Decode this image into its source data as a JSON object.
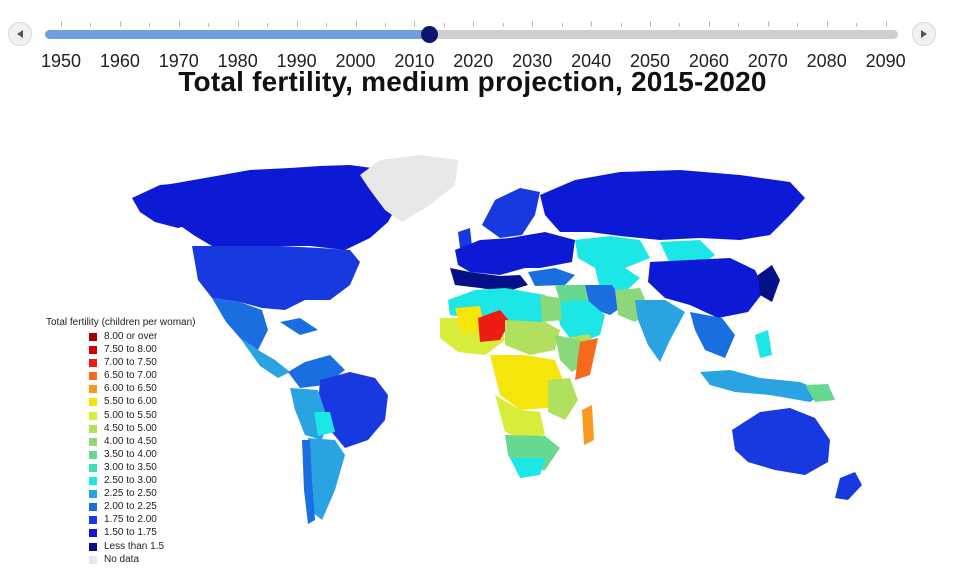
{
  "slider": {
    "years": [
      "1950",
      "1960",
      "1970",
      "1980",
      "1990",
      "2000",
      "2010",
      "2020",
      "2030",
      "2040",
      "2050",
      "2060",
      "2070",
      "2080",
      "2090"
    ],
    "selected_fraction": 0.45,
    "fill_color": "#6f9fe2",
    "thumb_color": "#0c1572"
  },
  "title": "Total fertility, medium projection, 2015-2020",
  "legend": {
    "title": "Total fertility (children per woman)",
    "items": [
      {
        "label": "8.00 or over",
        "color": "#a50000"
      },
      {
        "label": "7.50 to 8.00",
        "color": "#d40000"
      },
      {
        "label": "7.00 to 7.50",
        "color": "#ee1c10"
      },
      {
        "label": "6.50 to 7.00",
        "color": "#f76a1d"
      },
      {
        "label": "6.00 to 6.50",
        "color": "#f99a1f"
      },
      {
        "label": "5.50 to 6.00",
        "color": "#f5e50a"
      },
      {
        "label": "5.00 to 5.50",
        "color": "#d8ec3a"
      },
      {
        "label": "4.50 to 5.00",
        "color": "#b0e05e"
      },
      {
        "label": "4.00 to 4.50",
        "color": "#8ad87a"
      },
      {
        "label": "3.50 to 4.00",
        "color": "#66d88f"
      },
      {
        "label": "3.00 to 3.50",
        "color": "#3fdcbd"
      },
      {
        "label": "2.50 to 3.00",
        "color": "#1ce6e6"
      },
      {
        "label": "2.25 to 2.50",
        "color": "#2aa3e3"
      },
      {
        "label": "2.00 to 2.25",
        "color": "#1a6fe0"
      },
      {
        "label": "1.75 to 2.00",
        "color": "#1838e0"
      },
      {
        "label": "1.50 to 1.75",
        "color": "#0c1ad6"
      },
      {
        "label": "Less than 1.5",
        "color": "#061088"
      },
      {
        "label": "No data",
        "color": "#e8e8e8"
      }
    ]
  }
}
